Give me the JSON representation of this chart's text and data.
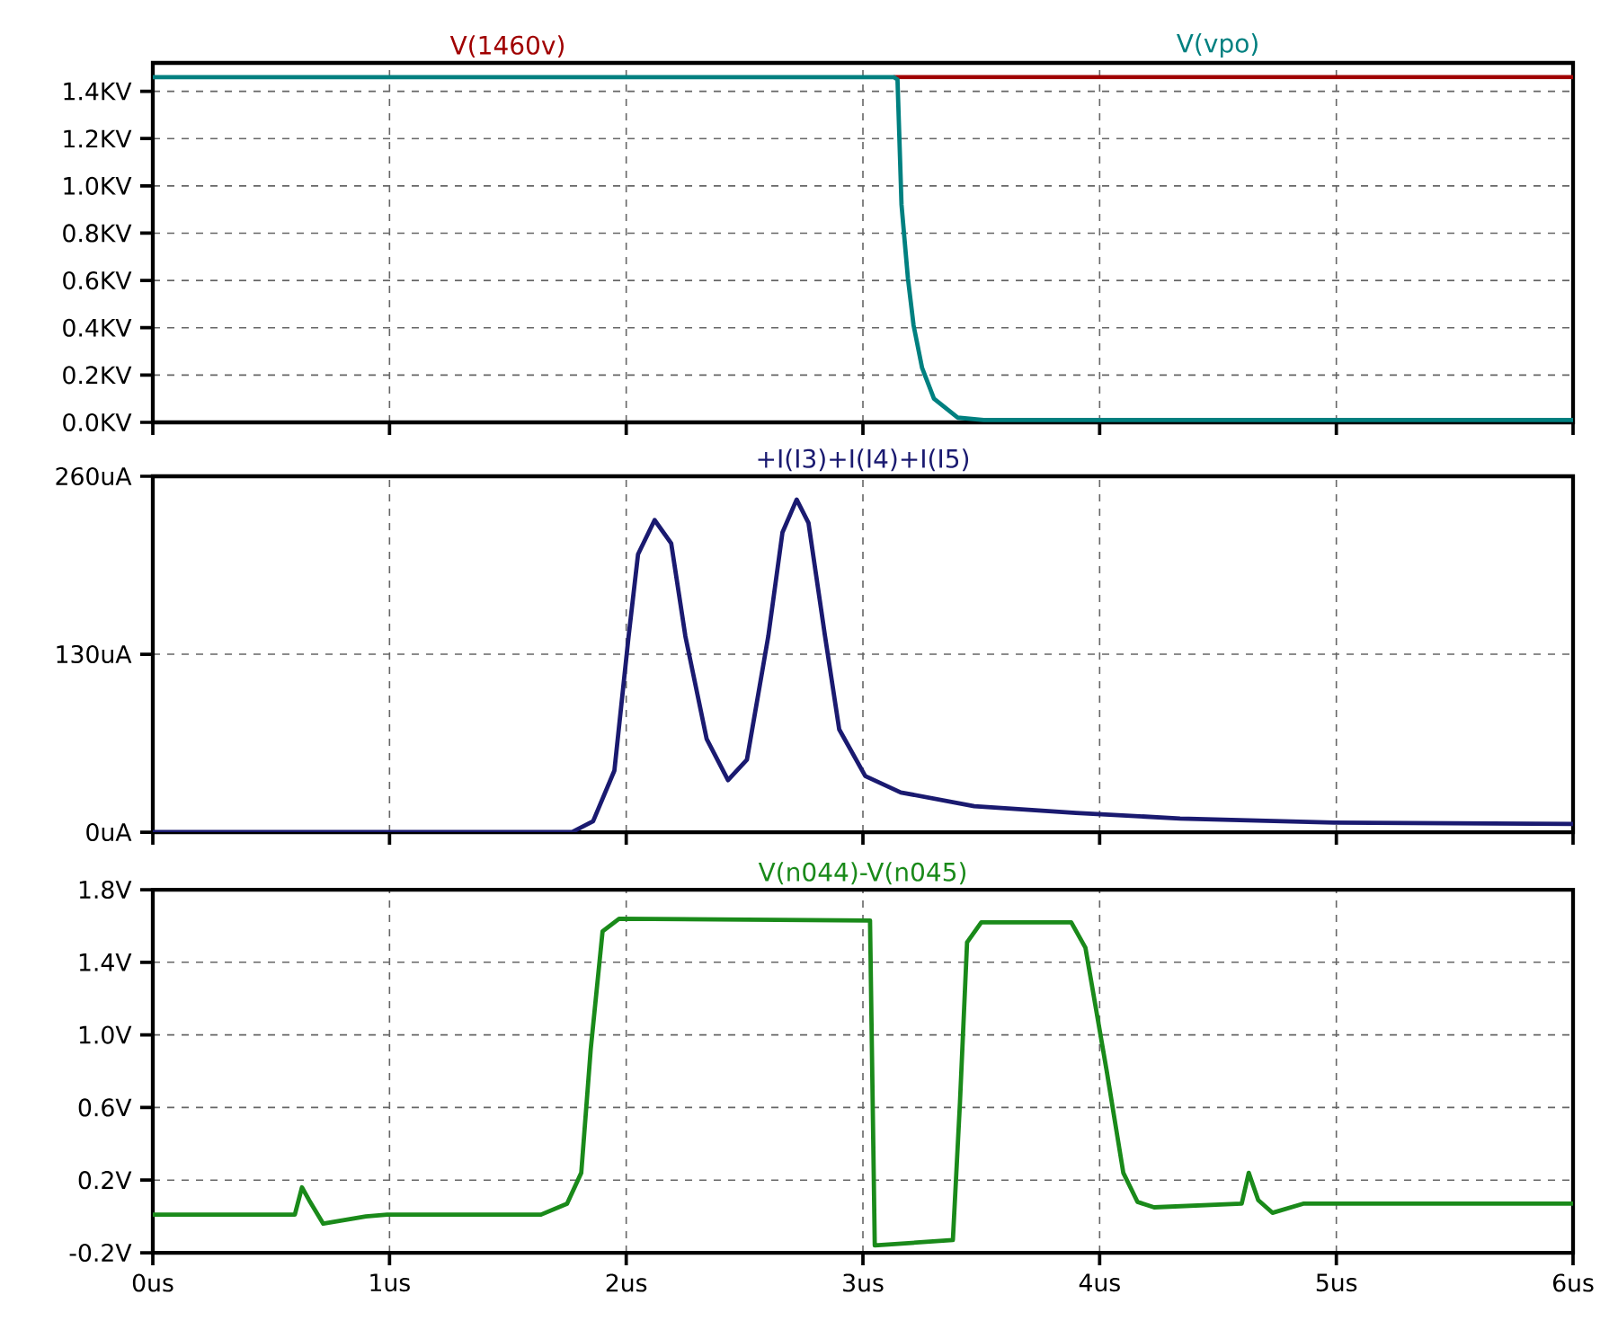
{
  "chart_data": [
    {
      "type": "line",
      "grid": true,
      "tick_labels": "y",
      "xlim": [
        0,
        6
      ],
      "ylim": [
        0,
        1.52
      ],
      "xticks": [
        {
          "value": 0,
          "label": null
        },
        {
          "value": 1,
          "label": null
        },
        {
          "value": 2,
          "label": null
        },
        {
          "value": 3,
          "label": null
        },
        {
          "value": 4,
          "label": null
        },
        {
          "value": 5,
          "label": null
        },
        {
          "value": 6,
          "label": null
        }
      ],
      "yticks": [
        {
          "value": 0,
          "label": "0.0KV"
        },
        {
          "value": 0.2,
          "label": "0.2KV"
        },
        {
          "value": 0.4,
          "label": "0.4KV"
        },
        {
          "value": 0.6,
          "label": "0.6KV"
        },
        {
          "value": 0.8,
          "label": "0.8KV"
        },
        {
          "value": 1.0,
          "label": "1.0KV"
        },
        {
          "value": 1.2,
          "label": "1.2KV"
        },
        {
          "value": 1.4,
          "label": "1.4KV"
        }
      ],
      "series": [
        {
          "name": "V(1460v)",
          "color": "#a00000",
          "x": [
            3.13,
            6
          ],
          "values": [
            1.46,
            1.46
          ]
        },
        {
          "name": "V(vpo)",
          "color": "#008080",
          "x": [
            0,
            3.13,
            3.146,
            3.163,
            3.19,
            3.214,
            3.25,
            3.3,
            3.4,
            3.51,
            6
          ],
          "values": [
            1.46,
            1.46,
            1.45,
            0.92,
            0.61,
            0.41,
            0.23,
            0.1,
            0.02,
            0.01,
            0.01
          ]
        }
      ]
    },
    {
      "type": "line",
      "grid": true,
      "tick_labels": "y",
      "xlim": [
        0,
        6
      ],
      "ylim": [
        0,
        260
      ],
      "xticks": [
        {
          "value": 0,
          "label": null
        },
        {
          "value": 1,
          "label": null
        },
        {
          "value": 2,
          "label": null
        },
        {
          "value": 3,
          "label": null
        },
        {
          "value": 4,
          "label": null
        },
        {
          "value": 5,
          "label": null
        },
        {
          "value": 6,
          "label": null
        }
      ],
      "yticks": [
        {
          "value": 0,
          "label": "0uA"
        },
        {
          "value": 130,
          "label": "130uA"
        },
        {
          "value": 260,
          "label": "260uA"
        }
      ],
      "series": [
        {
          "name": "+I(I3)+I(I4)+I(I5)",
          "color": "#1a1a70",
          "x": [
            0,
            1.77,
            1.86,
            1.95,
            2.01,
            2.05,
            2.12,
            2.19,
            2.25,
            2.34,
            2.43,
            2.51,
            2.6,
            2.66,
            2.72,
            2.77,
            2.84,
            2.9,
            3.01,
            3.16,
            3.47,
            3.9,
            4.34,
            4.99,
            6
          ],
          "values": [
            0,
            0,
            8,
            45,
            143,
            203,
            228,
            211,
            143,
            68,
            38,
            53,
            143,
            219,
            243,
            226,
            143,
            75,
            41,
            29,
            19,
            14,
            10,
            7,
            6
          ]
        }
      ]
    },
    {
      "type": "line",
      "grid": true,
      "xlim": [
        0,
        6
      ],
      "ylim": [
        -0.2,
        1.8
      ],
      "xticks": [
        {
          "value": 0,
          "label": "0us"
        },
        {
          "value": 1,
          "label": "1us"
        },
        {
          "value": 2,
          "label": "2us"
        },
        {
          "value": 3,
          "label": "3us"
        },
        {
          "value": 4,
          "label": "4us"
        },
        {
          "value": 5,
          "label": "5us"
        },
        {
          "value": 6,
          "label": "6us"
        }
      ],
      "yticks": [
        {
          "value": -0.2,
          "label": "-0.2V"
        },
        {
          "value": 0.2,
          "label": "0.2V"
        },
        {
          "value": 0.6,
          "label": "0.6V"
        },
        {
          "value": 1.0,
          "label": "1.0V"
        },
        {
          "value": 1.4,
          "label": "1.4V"
        },
        {
          "value": 1.8,
          "label": "1.8V"
        }
      ],
      "series": [
        {
          "name": "V(n044)-V(n045)",
          "color": "#1a8a1a",
          "x": [
            0,
            0.6,
            0.63,
            0.66,
            0.72,
            0.9,
            0.99,
            1.64,
            1.75,
            1.81,
            1.85,
            1.9,
            1.97,
            3.03,
            3.05,
            3.38,
            3.41,
            3.44,
            3.5,
            3.88,
            3.94,
            4.03,
            4.1,
            4.16,
            4.23,
            4.6,
            4.63,
            4.67,
            4.73,
            4.86,
            6
          ],
          "values": [
            0.01,
            0.01,
            0.16,
            0.09,
            -0.04,
            0.0,
            0.01,
            0.01,
            0.07,
            0.24,
            0.92,
            1.57,
            1.64,
            1.63,
            -0.16,
            -0.13,
            0.63,
            1.51,
            1.62,
            1.62,
            1.48,
            0.8,
            0.24,
            0.08,
            0.05,
            0.07,
            0.24,
            0.09,
            0.02,
            0.07,
            0.07
          ]
        }
      ]
    }
  ]
}
